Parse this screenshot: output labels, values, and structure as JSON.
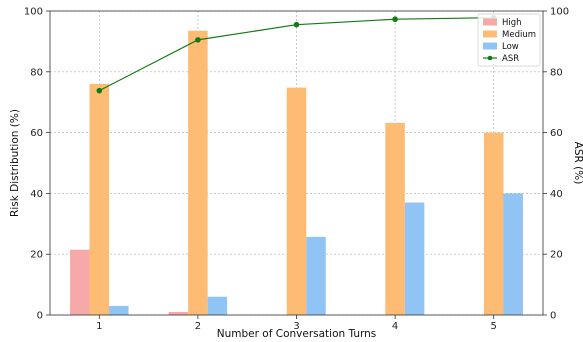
{
  "chart_data": {
    "type": "bar",
    "categories": [
      "1",
      "2",
      "3",
      "4",
      "5"
    ],
    "xlabel": "Number of Conversation Turns",
    "ylabel": "Risk Distribution (%)",
    "y2label": "ASR (%)",
    "ylim": [
      0,
      100
    ],
    "y2lim": [
      0,
      100
    ],
    "yticks": [
      0,
      20,
      40,
      60,
      80,
      100
    ],
    "grid": true,
    "legend_position": "top-right",
    "series": [
      {
        "name": "High",
        "kind": "bar",
        "color": "#f7a8a8",
        "values": [
          21.5,
          1,
          0,
          0,
          0
        ]
      },
      {
        "name": "Medium",
        "kind": "bar",
        "color": "#fdbb74",
        "values": [
          76,
          93.5,
          74.8,
          63.2,
          60
        ]
      },
      {
        "name": "Low",
        "kind": "bar",
        "color": "#90c4f5",
        "values": [
          3,
          6,
          25.7,
          37,
          40
        ]
      },
      {
        "name": "ASR",
        "kind": "line",
        "axis": "right",
        "color": "#137a13",
        "values": [
          73.8,
          90.5,
          95.5,
          97.3,
          97.8
        ]
      }
    ]
  }
}
